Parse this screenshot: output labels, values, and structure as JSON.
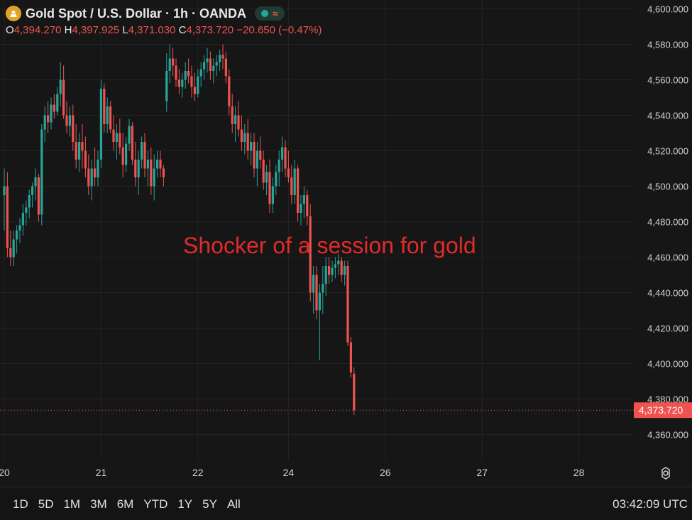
{
  "header": {
    "title": "Gold Spot / U.S. Dollar · 1h · OANDA",
    "ohlc": [
      {
        "key": "O",
        "value": "4,394.270"
      },
      {
        "key": "H",
        "value": "4,397.925"
      },
      {
        "key": "L",
        "value": "4,371.030"
      },
      {
        "key": "C",
        "value": "4,373.720"
      }
    ],
    "change": "−20.650 (−0.47%)"
  },
  "annotation": "Shocker of a session for gold",
  "colors": {
    "up": "#26a69a",
    "down": "#ef5350",
    "annotation": "#e12b2b",
    "background": "#161616"
  },
  "time_ranges": [
    "1D",
    "5D",
    "1M",
    "3M",
    "6M",
    "YTD",
    "1Y",
    "5Y",
    "All"
  ],
  "clock": "03:42:09 UTC",
  "chart_data": {
    "type": "candlestick",
    "ylim": [
      4345,
      4605
    ],
    "last_price": 4373.72,
    "last_price_label": "4,373.720",
    "y_ticks": [
      4600,
      4580,
      4560,
      4540,
      4520,
      4500,
      4480,
      4460,
      4440,
      4420,
      4400,
      4380,
      4360
    ],
    "y_tick_labels": [
      "4,600.000",
      "4,580.000",
      "4,560.000",
      "4,540.000",
      "4,520.000",
      "4,500.000",
      "4,480.000",
      "4,460.000",
      "4,440.000",
      "4,420.000",
      "4,400.000",
      "4,380.000",
      "4,360.000"
    ],
    "x_labels": [
      {
        "label": "20",
        "bar": 0
      },
      {
        "label": "21",
        "bar": 31
      },
      {
        "label": "22",
        "bar": 62
      },
      {
        "label": "24",
        "bar": 91
      },
      {
        "label": "26",
        "bar": 122
      },
      {
        "label": "27",
        "bar": 153
      },
      {
        "label": "28",
        "bar": 184
      }
    ],
    "candles": [
      [
        4495,
        4510,
        4475,
        4500
      ],
      [
        4500,
        4508,
        4460,
        4465
      ],
      [
        4465,
        4475,
        4455,
        4460
      ],
      [
        4460,
        4475,
        4455,
        4470
      ],
      [
        4470,
        4478,
        4462,
        4475
      ],
      [
        4475,
        4482,
        4468,
        4478
      ],
      [
        4478,
        4490,
        4472,
        4485
      ],
      [
        4485,
        4492,
        4478,
        4488
      ],
      [
        4488,
        4498,
        4482,
        4495
      ],
      [
        4495,
        4502,
        4488,
        4500
      ],
      [
        4500,
        4510,
        4492,
        4505
      ],
      [
        4505,
        4507,
        4480,
        4484
      ],
      [
        4484,
        4535,
        4478,
        4532
      ],
      [
        4532,
        4545,
        4525,
        4540
      ],
      [
        4540,
        4548,
        4530,
        4536
      ],
      [
        4536,
        4550,
        4532,
        4546
      ],
      [
        4546,
        4552,
        4538,
        4542
      ],
      [
        4542,
        4556,
        4540,
        4552
      ],
      [
        4552,
        4570,
        4545,
        4560
      ],
      [
        4560,
        4568,
        4538,
        4540
      ],
      [
        4540,
        4548,
        4530,
        4534
      ],
      [
        4534,
        4545,
        4528,
        4540
      ],
      [
        4540,
        4546,
        4520,
        4525
      ],
      [
        4525,
        4535,
        4510,
        4515
      ],
      [
        4515,
        4530,
        4508,
        4525
      ],
      [
        4525,
        4535,
        4510,
        4520
      ],
      [
        4520,
        4528,
        4505,
        4510
      ],
      [
        4510,
        4518,
        4495,
        4500
      ],
      [
        4500,
        4515,
        4492,
        4510
      ],
      [
        4510,
        4522,
        4500,
        4505
      ],
      [
        4505,
        4520,
        4500,
        4515
      ],
      [
        4515,
        4560,
        4510,
        4555
      ],
      [
        4555,
        4558,
        4530,
        4535
      ],
      [
        4535,
        4550,
        4530,
        4545
      ],
      [
        4545,
        4548,
        4530,
        4532
      ],
      [
        4532,
        4540,
        4520,
        4525
      ],
      [
        4525,
        4535,
        4515,
        4530
      ],
      [
        4530,
        4538,
        4518,
        4522
      ],
      [
        4522,
        4530,
        4505,
        4512
      ],
      [
        4512,
        4528,
        4508,
        4524
      ],
      [
        4524,
        4538,
        4520,
        4534
      ],
      [
        4534,
        4536,
        4512,
        4515
      ],
      [
        4515,
        4525,
        4500,
        4505
      ],
      [
        4505,
        4520,
        4495,
        4515
      ],
      [
        4515,
        4528,
        4510,
        4525
      ],
      [
        4525,
        4530,
        4505,
        4510
      ],
      [
        4510,
        4520,
        4500,
        4515
      ],
      [
        4515,
        4522,
        4495,
        4500
      ],
      [
        4500,
        4518,
        4492,
        4510
      ],
      [
        4510,
        4520,
        4505,
        4515
      ],
      [
        4515,
        4520,
        4505,
        4510
      ],
      [
        4510,
        4512,
        4500,
        4505
      ],
      [
        4548,
        4575,
        4542,
        4565
      ],
      [
        4565,
        4580,
        4558,
        4572
      ],
      [
        4572,
        4578,
        4562,
        4568
      ],
      [
        4568,
        4572,
        4556,
        4560
      ],
      [
        4560,
        4566,
        4552,
        4556
      ],
      [
        4556,
        4564,
        4550,
        4560
      ],
      [
        4560,
        4570,
        4555,
        4565
      ],
      [
        4565,
        4572,
        4558,
        4562
      ],
      [
        4562,
        4568,
        4550,
        4556
      ],
      [
        4556,
        4564,
        4548,
        4552
      ],
      [
        4552,
        4566,
        4550,
        4562
      ],
      [
        4562,
        4570,
        4556,
        4566
      ],
      [
        4566,
        4574,
        4560,
        4570
      ],
      [
        4570,
        4578,
        4564,
        4572
      ],
      [
        4572,
        4576,
        4560,
        4565
      ],
      [
        4565,
        4572,
        4558,
        4568
      ],
      [
        4568,
        4574,
        4562,
        4570
      ],
      [
        4570,
        4577,
        4565,
        4574
      ],
      [
        4574,
        4580,
        4566,
        4572
      ],
      [
        4572,
        4576,
        4558,
        4562
      ],
      [
        4562,
        4566,
        4540,
        4545
      ],
      [
        4545,
        4552,
        4530,
        4535
      ],
      [
        4535,
        4545,
        4525,
        4540
      ],
      [
        4540,
        4548,
        4528,
        4532
      ],
      [
        4532,
        4540,
        4520,
        4525
      ],
      [
        4525,
        4535,
        4518,
        4530
      ],
      [
        4530,
        4538,
        4515,
        4520
      ],
      [
        4520,
        4530,
        4512,
        4525
      ],
      [
        4525,
        4530,
        4505,
        4510
      ],
      [
        4510,
        4525,
        4500,
        4520
      ],
      [
        4520,
        4528,
        4510,
        4515
      ],
      [
        4515,
        4520,
        4498,
        4502
      ],
      [
        4502,
        4512,
        4495,
        4508
      ],
      [
        4508,
        4515,
        4485,
        4490
      ],
      [
        4490,
        4505,
        4485,
        4500
      ],
      [
        4500,
        4512,
        4495,
        4508
      ],
      [
        4508,
        4520,
        4500,
        4515
      ],
      [
        4515,
        4528,
        4508,
        4522
      ],
      [
        4522,
        4526,
        4505,
        4510
      ],
      [
        4510,
        4520,
        4502,
        4505
      ],
      [
        4505,
        4512,
        4490,
        4495
      ],
      [
        4495,
        4515,
        4490,
        4510
      ],
      [
        4510,
        4512,
        4480,
        4485
      ],
      [
        4485,
        4495,
        4478,
        4490
      ],
      [
        4490,
        4500,
        4482,
        4495
      ],
      [
        4495,
        4498,
        4478,
        4483
      ],
      [
        4483,
        4490,
        4435,
        4440
      ],
      [
        4440,
        4455,
        4428,
        4450
      ],
      [
        4450,
        4455,
        4425,
        4430
      ],
      [
        4430,
        4445,
        4402,
        4440
      ],
      [
        4440,
        4455,
        4428,
        4445
      ],
      [
        4445,
        4460,
        4438,
        4455
      ],
      [
        4455,
        4460,
        4445,
        4450
      ],
      [
        4450,
        4458,
        4446,
        4454
      ],
      [
        4454,
        4460,
        4448,
        4456
      ],
      [
        4456,
        4462,
        4450,
        4458
      ],
      [
        4458,
        4460,
        4446,
        4450
      ],
      [
        4450,
        4458,
        4444,
        4455
      ],
      [
        4455,
        4458,
        4410,
        4412
      ],
      [
        4412,
        4415,
        4392,
        4395
      ],
      [
        4394.27,
        4397.925,
        4371.03,
        4373.72
      ]
    ]
  }
}
